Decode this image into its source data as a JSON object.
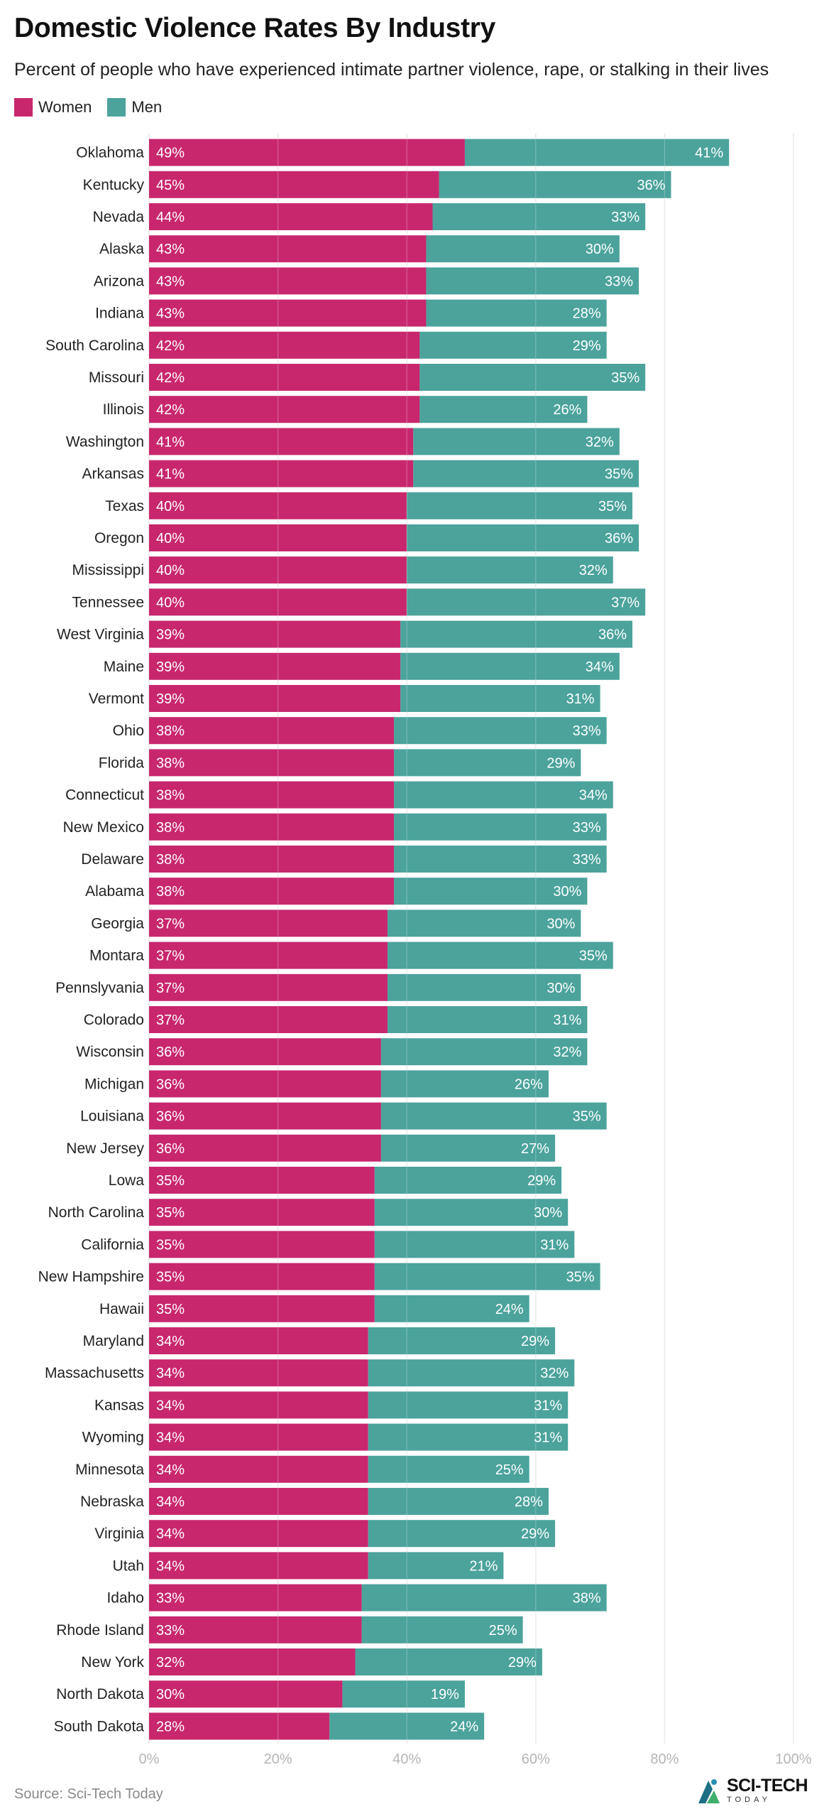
{
  "colors": {
    "women": "#c8276e",
    "men": "#4ba39c",
    "grid": "#e6e6e6",
    "tick": "#b5b5b5"
  },
  "source": "Source: Sci-Tech Today",
  "logo": {
    "main": "SCI-TECH",
    "sub": "TODAY"
  },
  "chart_data": {
    "type": "bar",
    "orientation": "horizontal",
    "stacked": true,
    "title": "Domestic Violence Rates By Industry",
    "subtitle": "Percent of people who have experienced intimate partner violence, rape, or stalking in their lives",
    "xlim": [
      0,
      100
    ],
    "xticks": [
      "0%",
      "20%",
      "40%",
      "60%",
      "80%",
      "100%"
    ],
    "categories": [
      "Oklahoma",
      "Kentucky",
      "Nevada",
      "Alaska",
      "Arizona",
      "Indiana",
      "South Carolina",
      "Missouri",
      "Illinois",
      "Washington",
      "Arkansas",
      "Texas",
      "Oregon",
      "Mississippi",
      "Tennessee",
      "West Virginia",
      "Maine",
      "Vermont",
      "Ohio",
      "Florida",
      "Connecticut",
      "New Mexico",
      "Delaware",
      "Alabama",
      "Georgia",
      "Montara",
      "Pennslyvania",
      "Colorado",
      "Wisconsin",
      "Michigan",
      "Louisiana",
      "New Jersey",
      "Lowa",
      "North Carolina",
      "California",
      "New Hampshire",
      "Hawaii",
      "Maryland",
      "Massachusetts",
      "Kansas",
      "Wyoming",
      "Minnesota",
      "Nebraska",
      "Virginia",
      "Utah",
      "Idaho",
      "Rhode Island",
      "New York",
      "North Dakota",
      "South Dakota"
    ],
    "series": [
      {
        "name": "Women",
        "values": [
          49,
          45,
          44,
          43,
          43,
          43,
          42,
          42,
          42,
          41,
          41,
          40,
          40,
          40,
          40,
          39,
          39,
          39,
          38,
          38,
          38,
          38,
          38,
          38,
          37,
          37,
          37,
          37,
          36,
          36,
          36,
          36,
          35,
          35,
          35,
          35,
          35,
          34,
          34,
          34,
          34,
          34,
          34,
          34,
          34,
          33,
          33,
          32,
          30,
          28
        ]
      },
      {
        "name": "Men",
        "values": [
          41,
          36,
          33,
          30,
          33,
          28,
          29,
          35,
          26,
          32,
          35,
          35,
          36,
          32,
          37,
          36,
          34,
          31,
          33,
          29,
          34,
          33,
          33,
          30,
          30,
          35,
          30,
          31,
          32,
          26,
          35,
          27,
          29,
          30,
          31,
          35,
          24,
          29,
          32,
          31,
          31,
          25,
          28,
          29,
          21,
          38,
          25,
          29,
          19,
          24
        ]
      }
    ]
  }
}
